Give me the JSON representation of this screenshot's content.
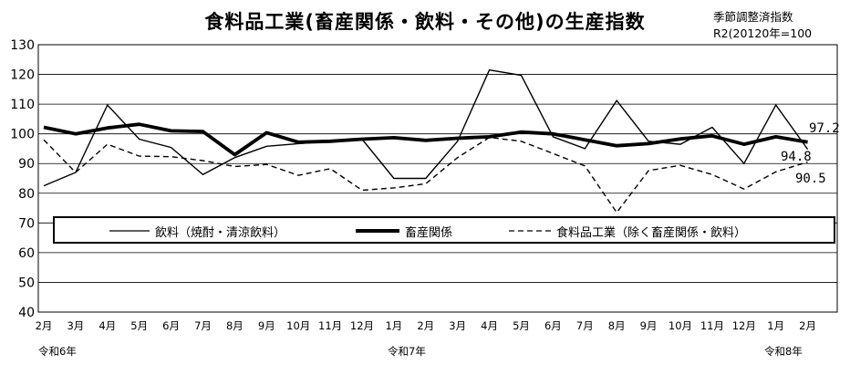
{
  "title": "食料品工業(畜産関係・飲料・その他)の生産指数",
  "note": [
    "季節調整済指数",
    "R2(20120年=100"
  ],
  "chart_data": {
    "type": "line",
    "categories": [
      "2月",
      "3月",
      "4月",
      "5月",
      "6月",
      "7月",
      "8月",
      "9月",
      "10月",
      "11月",
      "12月",
      "1月",
      "2月",
      "3月",
      "4月",
      "5月",
      "6月",
      "7月",
      "8月",
      "9月",
      "10月",
      "11月",
      "12月",
      "1月",
      "2月"
    ],
    "era_labels": [
      {
        "text": "令和6年",
        "category_index": 0
      },
      {
        "text": "令和7年",
        "category_index": 11
      },
      {
        "text": "令和8年",
        "category_index": 23
      }
    ],
    "ylim": [
      40,
      130
    ],
    "yticks": [
      40,
      50,
      60,
      70,
      80,
      90,
      100,
      110,
      120,
      130
    ],
    "grid": true,
    "legend_position": "inside-bottom",
    "series": [
      {
        "name": "飲料（焼酎・清涼飲料）",
        "style": "thin",
        "values": [
          82.5,
          87,
          109.7,
          98.2,
          95.4,
          86.3,
          92,
          95.8,
          96.7,
          97.5,
          98.2,
          85,
          85,
          97.5,
          121.5,
          119.7,
          99,
          95,
          111.2,
          97.5,
          96.5,
          102.2,
          90,
          109.7,
          94.8
        ]
      },
      {
        "name": "畜産関係",
        "style": "thick",
        "values": [
          102.2,
          100,
          102,
          103.2,
          101,
          100.8,
          93,
          100.4,
          97.2,
          97.5,
          98.2,
          98.7,
          97.8,
          98.5,
          99,
          100.6,
          100,
          98,
          96,
          96.7,
          98.3,
          99.3,
          96.5,
          99,
          97.2
        ]
      },
      {
        "name": "食料品工業（除く畜産関係・飲料）",
        "style": "dashed",
        "values": [
          98,
          87,
          96.5,
          92.5,
          92.3,
          91,
          89,
          89.7,
          86,
          88.3,
          81,
          81.8,
          83.2,
          92,
          98.8,
          97.5,
          93.4,
          89.2,
          73.5,
          87.6,
          89.4,
          86.3,
          81.4,
          87.2,
          90.5
        ]
      }
    ],
    "annotations": [
      "97.2",
      "94.8",
      "90.5"
    ]
  }
}
